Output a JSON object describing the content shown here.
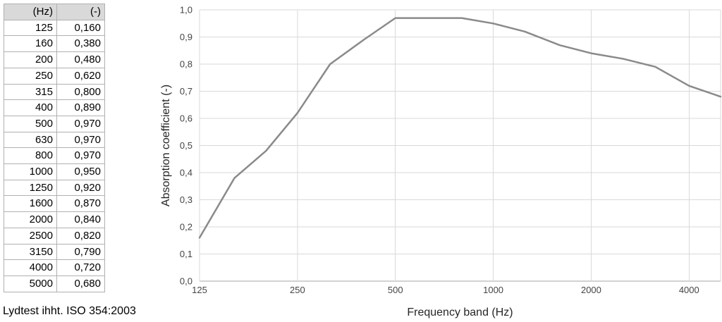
{
  "table": {
    "col_headers": [
      "(Hz)",
      "(-)"
    ],
    "rows": [
      [
        "125",
        "0,160"
      ],
      [
        "160",
        "0,380"
      ],
      [
        "200",
        "0,480"
      ],
      [
        "250",
        "0,620"
      ],
      [
        "315",
        "0,800"
      ],
      [
        "400",
        "0,890"
      ],
      [
        "500",
        "0,970"
      ],
      [
        "630",
        "0,970"
      ],
      [
        "800",
        "0,970"
      ],
      [
        "1000",
        "0,950"
      ],
      [
        "1250",
        "0,920"
      ],
      [
        "1600",
        "0,870"
      ],
      [
        "2000",
        "0,840"
      ],
      [
        "2500",
        "0,820"
      ],
      [
        "3150",
        "0,790"
      ],
      [
        "4000",
        "0,720"
      ],
      [
        "5000",
        "0,680"
      ]
    ]
  },
  "footer": {
    "note": "Lydtest ihht. ISO 354:2003"
  },
  "chart_data": {
    "type": "line",
    "title": "",
    "xlabel": "Frequency band (Hz)",
    "ylabel": "Absorption coefficient (-)",
    "x_scale": "log2",
    "xlim": [
      125,
      5000
    ],
    "ylim": [
      0,
      1
    ],
    "grid": true,
    "legend_position": "none",
    "x": [
      125,
      160,
      200,
      250,
      315,
      400,
      500,
      630,
      800,
      1000,
      1250,
      1600,
      2000,
      2500,
      3150,
      4000,
      5000
    ],
    "y": [
      0.16,
      0.38,
      0.48,
      0.62,
      0.8,
      0.89,
      0.97,
      0.97,
      0.97,
      0.95,
      0.92,
      0.87,
      0.84,
      0.82,
      0.79,
      0.72,
      0.68
    ],
    "y_tick_labels": [
      "0,0",
      "0,1",
      "0,2",
      "0,3",
      "0,4",
      "0,5",
      "0,6",
      "0,7",
      "0,8",
      "0,9",
      "1,0"
    ],
    "x_ticks": [
      {
        "value": 125,
        "label": "125"
      },
      {
        "value": 250,
        "label": "250"
      },
      {
        "value": 500,
        "label": "500"
      },
      {
        "value": 1000,
        "label": "1000"
      },
      {
        "value": 2000,
        "label": "2000"
      },
      {
        "value": 4000,
        "label": "4000"
      }
    ],
    "colors": {
      "line": "#8a8a8a",
      "grid": "#d9d9d9",
      "axis": "#a6a6a6",
      "tick_text": "#444444",
      "title_text": "#262626"
    }
  }
}
